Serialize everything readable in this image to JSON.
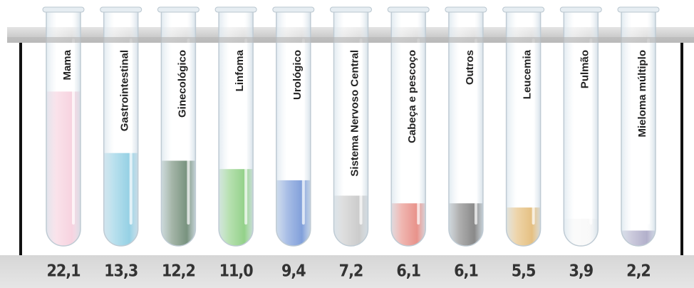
{
  "chart_data": {
    "type": "bar",
    "categories": [
      "Mama",
      "Gastrointestinal",
      "Ginecológico",
      "Linfoma",
      "Urológico",
      "Sistema Nervoso Central",
      "Cabeça e pescoço",
      "Outros",
      "Leucemia",
      "Pulmão",
      "Mieloma múltiplo"
    ],
    "values": [
      22.1,
      13.3,
      12.2,
      11.0,
      9.4,
      7.2,
      6.1,
      6.1,
      5.5,
      3.9,
      2.2
    ],
    "value_labels": [
      "22,1",
      "13,3",
      "12,2",
      "11,0",
      "9,4",
      "7,2",
      "6,1",
      "6,1",
      "5,5",
      "3,9",
      "2,2"
    ],
    "colors": [
      "#f2b6cb",
      "#4fb2d3",
      "#1f4a2a",
      "#4cb33c",
      "#2d60c2",
      "#a9a9a9",
      "#d94a3d",
      "#3a3a3a",
      "#d4962e",
      "#f4f4f4",
      "#7f7ba8"
    ]
  }
}
